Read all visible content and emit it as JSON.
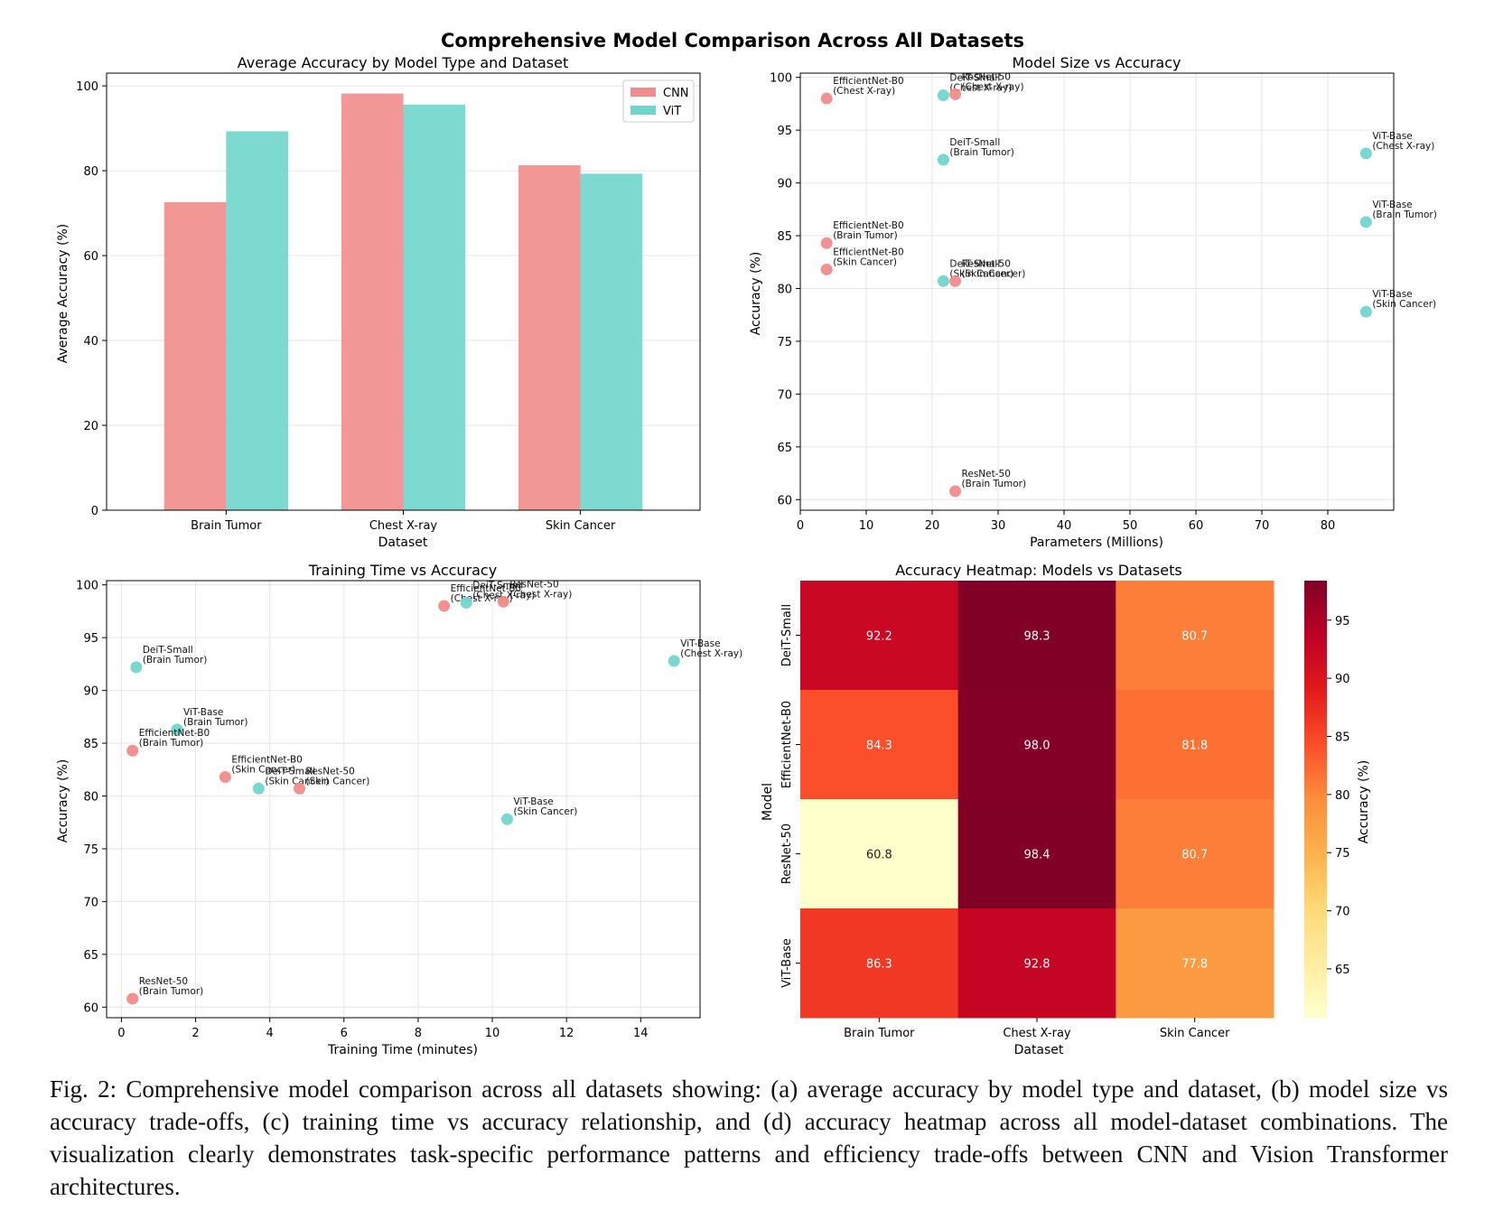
{
  "figure": {
    "title": "Comprehensive Model Comparison Across All Datasets",
    "caption": "Fig. 2: Comprehensive model comparison across all datasets showing: (a) average accuracy by model type and dataset, (b) model size vs accuracy trade-offs, (c) training time vs accuracy relationship, and (d) accuracy heatmap across all model-dataset combinations. The visualization clearly demonstrates task-specific performance patterns and efficiency trade-offs between CNN and Vision Transformer architectures."
  },
  "colors": {
    "cnn": "#f28b8b",
    "vit": "#6fd6cc"
  },
  "chart_data": [
    {
      "type": "bar",
      "title": "Average Accuracy by Model Type and Dataset",
      "xlabel": "Dataset",
      "ylabel": "Average Accuracy (%)",
      "categories": [
        "Brain Tumor",
        "Chest X-ray",
        "Skin Cancer"
      ],
      "series": [
        {
          "name": "CNN",
          "values": [
            72.6,
            98.2,
            81.3
          ]
        },
        {
          "name": "ViT",
          "values": [
            89.3,
            95.6,
            79.3
          ]
        }
      ],
      "ylim": [
        0,
        103
      ],
      "yticks": [
        0,
        20,
        40,
        60,
        80,
        100
      ],
      "legend": "top-right",
      "grid": true
    },
    {
      "type": "scatter",
      "title": "Model Size vs Accuracy",
      "xlabel": "Parameters (Millions)",
      "ylabel": "Accuracy (%)",
      "xlim": [
        0,
        90
      ],
      "ylim": [
        59,
        100.4
      ],
      "xticks": [
        0,
        10,
        20,
        30,
        40,
        50,
        60,
        70,
        80
      ],
      "yticks": [
        60,
        65,
        70,
        75,
        80,
        85,
        90,
        95,
        100
      ],
      "grid": true,
      "points": [
        {
          "model": "EfficientNet-B0",
          "dataset": "Chest X-ray",
          "family": "cnn",
          "x": 4.0,
          "y": 98.0
        },
        {
          "model": "DeiT-Small",
          "dataset": "Chest X-ray",
          "family": "vit",
          "x": 21.7,
          "y": 98.3
        },
        {
          "model": "ResNet-50",
          "dataset": "Chest X-ray",
          "family": "cnn",
          "x": 23.5,
          "y": 98.4
        },
        {
          "model": "DeiT-Small",
          "dataset": "Brain Tumor",
          "family": "vit",
          "x": 21.7,
          "y": 92.2
        },
        {
          "model": "ViT-Base",
          "dataset": "Chest X-ray",
          "family": "vit",
          "x": 85.8,
          "y": 92.8
        },
        {
          "model": "ViT-Base",
          "dataset": "Brain Tumor",
          "family": "vit",
          "x": 85.8,
          "y": 86.3
        },
        {
          "model": "EfficientNet-B0",
          "dataset": "Brain Tumor",
          "family": "cnn",
          "x": 4.0,
          "y": 84.3
        },
        {
          "model": "EfficientNet-B0",
          "dataset": "Skin Cancer",
          "family": "cnn",
          "x": 4.0,
          "y": 81.8
        },
        {
          "model": "DeiT-Small",
          "dataset": "Skin Cancer",
          "family": "vit",
          "x": 21.7,
          "y": 80.7
        },
        {
          "model": "ResNet-50",
          "dataset": "Skin Cancer",
          "family": "cnn",
          "x": 23.5,
          "y": 80.7
        },
        {
          "model": "ViT-Base",
          "dataset": "Skin Cancer",
          "family": "vit",
          "x": 85.8,
          "y": 77.8
        },
        {
          "model": "ResNet-50",
          "dataset": "Brain Tumor",
          "family": "cnn",
          "x": 23.5,
          "y": 60.8
        }
      ]
    },
    {
      "type": "scatter",
      "title": "Training Time vs Accuracy",
      "xlabel": "Training Time (minutes)",
      "ylabel": "Accuracy (%)",
      "xlim": [
        -0.4,
        15.6
      ],
      "ylim": [
        59,
        100.4
      ],
      "xticks": [
        0,
        2,
        4,
        6,
        8,
        10,
        12,
        14
      ],
      "yticks": [
        60,
        65,
        70,
        75,
        80,
        85,
        90,
        95,
        100
      ],
      "grid": true,
      "points": [
        {
          "model": "EfficientNet-B0",
          "dataset": "Chest X-ray",
          "family": "cnn",
          "x": 8.7,
          "y": 98.0
        },
        {
          "model": "DeiT-Small",
          "dataset": "Chest X-ray",
          "family": "vit",
          "x": 9.3,
          "y": 98.3
        },
        {
          "model": "ResNet-50",
          "dataset": "Chest X-ray",
          "family": "cnn",
          "x": 10.3,
          "y": 98.4
        },
        {
          "model": "DeiT-Small",
          "dataset": "Brain Tumor",
          "family": "vit",
          "x": 0.4,
          "y": 92.2
        },
        {
          "model": "ViT-Base",
          "dataset": "Chest X-ray",
          "family": "vit",
          "x": 14.9,
          "y": 92.8
        },
        {
          "model": "ViT-Base",
          "dataset": "Brain Tumor",
          "family": "vit",
          "x": 1.5,
          "y": 86.3
        },
        {
          "model": "EfficientNet-B0",
          "dataset": "Brain Tumor",
          "family": "cnn",
          "x": 0.3,
          "y": 84.3
        },
        {
          "model": "EfficientNet-B0",
          "dataset": "Skin Cancer",
          "family": "cnn",
          "x": 2.8,
          "y": 81.8
        },
        {
          "model": "DeiT-Small",
          "dataset": "Skin Cancer",
          "family": "vit",
          "x": 3.7,
          "y": 80.7
        },
        {
          "model": "ResNet-50",
          "dataset": "Skin Cancer",
          "family": "cnn",
          "x": 4.8,
          "y": 80.7
        },
        {
          "model": "ViT-Base",
          "dataset": "Skin Cancer",
          "family": "vit",
          "x": 10.4,
          "y": 77.8
        },
        {
          "model": "ResNet-50",
          "dataset": "Brain Tumor",
          "family": "cnn",
          "x": 0.3,
          "y": 60.8
        }
      ]
    },
    {
      "type": "heatmap",
      "title": "Accuracy Heatmap: Models vs Datasets",
      "xlabel": "Dataset",
      "ylabel": "Model",
      "columns": [
        "Brain Tumor",
        "Chest X-ray",
        "Skin Cancer"
      ],
      "rows": [
        "DeiT-Small",
        "EfficientNet-B0",
        "ResNet-50",
        "ViT-Base"
      ],
      "values": [
        [
          92.2,
          98.3,
          80.7
        ],
        [
          84.3,
          98.0,
          81.8
        ],
        [
          60.8,
          98.4,
          80.7
        ],
        [
          86.3,
          92.8,
          77.8
        ]
      ],
      "colorbar": {
        "label": "Accuracy (%)",
        "range": [
          60.8,
          98.4
        ],
        "ticks": [
          65,
          70,
          75,
          80,
          85,
          90,
          95
        ],
        "colormap": "YlOrRd"
      }
    }
  ]
}
